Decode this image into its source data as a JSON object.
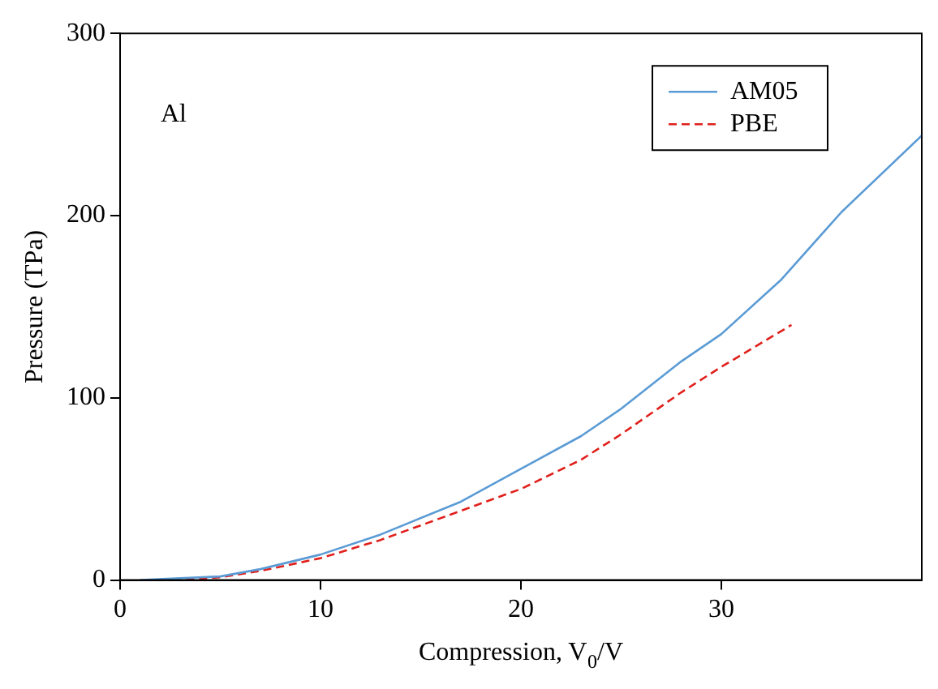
{
  "chart_data": {
    "type": "line",
    "xlabel": "Compression, V$_{0}$/V",
    "ylabel": "Pressure (TPa)",
    "annotations": [
      "Al"
    ],
    "xlim": [
      0,
      40
    ],
    "xticks": [
      0,
      10,
      20,
      30
    ],
    "ylim": [
      0,
      300
    ],
    "yticks": [
      0,
      100,
      200,
      300
    ],
    "grid": false,
    "legend": "top right",
    "marker": "none",
    "series": [
      {
        "name": "AM05",
        "color": "#5b9bd5",
        "line_style": "solid",
        "x": [
          1,
          3,
          5,
          7,
          10,
          13,
          17,
          20,
          23,
          25,
          28,
          30,
          33,
          36,
          40
        ],
        "values": [
          0,
          1,
          2,
          6,
          14,
          25,
          43,
          61,
          79,
          94,
          120,
          135,
          165,
          202,
          244
        ]
      },
      {
        "name": "PBE",
        "color": "#e0201b",
        "line_style": "dashed",
        "x": [
          2,
          3,
          5,
          7,
          10,
          13,
          17,
          20,
          23,
          25,
          28,
          30,
          33.5
        ],
        "values": [
          0,
          0,
          1.5,
          5,
          12,
          22,
          38,
          50,
          66,
          80,
          103,
          117,
          140
        ]
      }
    ]
  }
}
